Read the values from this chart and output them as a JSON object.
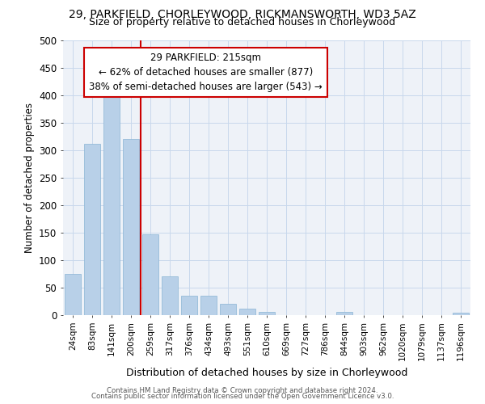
{
  "title_line1": "29, PARKFIELD, CHORLEYWOOD, RICKMANSWORTH, WD3 5AZ",
  "title_line2": "Size of property relative to detached houses in Chorleywood",
  "xlabel": "Distribution of detached houses by size in Chorleywood",
  "ylabel": "Number of detached properties",
  "footer_line1": "Contains HM Land Registry data © Crown copyright and database right 2024.",
  "footer_line2": "Contains public sector information licensed under the Open Government Licence v3.0.",
  "categories": [
    "24sqm",
    "83sqm",
    "141sqm",
    "200sqm",
    "259sqm",
    "317sqm",
    "376sqm",
    "434sqm",
    "493sqm",
    "551sqm",
    "610sqm",
    "669sqm",
    "727sqm",
    "786sqm",
    "844sqm",
    "903sqm",
    "962sqm",
    "1020sqm",
    "1079sqm",
    "1137sqm",
    "1196sqm"
  ],
  "values": [
    75,
    312,
    407,
    320,
    147,
    70,
    36,
    36,
    20,
    12,
    6,
    0,
    0,
    0,
    6,
    0,
    0,
    0,
    0,
    0,
    5
  ],
  "bar_color": "#b8d0e8",
  "bar_edge_color": "#8ab4d4",
  "grid_color": "#c8d8ec",
  "background_color": "#eef2f8",
  "red_line_x": 3.5,
  "ann_label": "29 PARKFIELD: 215sqm",
  "ann_line1": "← 62% of detached houses are smaller (877)",
  "ann_line2": "38% of semi-detached houses are larger (543) →",
  "ann_box_facecolor": "#ffffff",
  "ann_box_edgecolor": "#cc0000",
  "red_line_color": "#cc0000",
  "ylim": [
    0,
    500
  ],
  "yticks": [
    0,
    50,
    100,
    150,
    200,
    250,
    300,
    350,
    400,
    450,
    500
  ]
}
